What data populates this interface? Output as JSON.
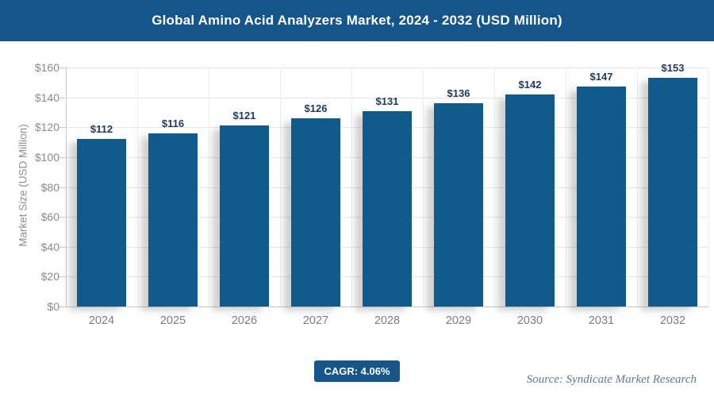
{
  "header": {
    "title": "Global Amino Acid Analyzers Market, 2024 - 2032 (USD Million)"
  },
  "chart_data": {
    "type": "bar",
    "title": "Global Amino Acid Analyzers Market, 2024 - 2032 (USD Million)",
    "categories": [
      "2024",
      "2025",
      "2026",
      "2027",
      "2028",
      "2029",
      "2030",
      "2031",
      "2032"
    ],
    "values": [
      112,
      116,
      121,
      126,
      131,
      136,
      142,
      147,
      153
    ],
    "value_labels": [
      "$112",
      "$116",
      "$121",
      "$126",
      "$131",
      "$136",
      "$142",
      "$147",
      "$153"
    ],
    "xlabel": "",
    "ylabel": "Market Size (USD Million)",
    "ylim": [
      0,
      160
    ],
    "ytick_step": 20,
    "ytick_labels": [
      "$0",
      "$20",
      "$40",
      "$60",
      "$80",
      "$100",
      "$120",
      "$140",
      "$160"
    ],
    "grid": "both",
    "legend": "none"
  },
  "footer": {
    "cagr_label": "CAGR: 4.06%",
    "source": "Source: Syndicate Market Research"
  },
  "colors": {
    "header_bg": "#15558a",
    "bar_fill": "#115a8c",
    "badge_bg": "#15558a",
    "bar_value_label": "#1e3a5f",
    "axis_text": "#8a8a8a",
    "source_text": "#64798c"
  }
}
